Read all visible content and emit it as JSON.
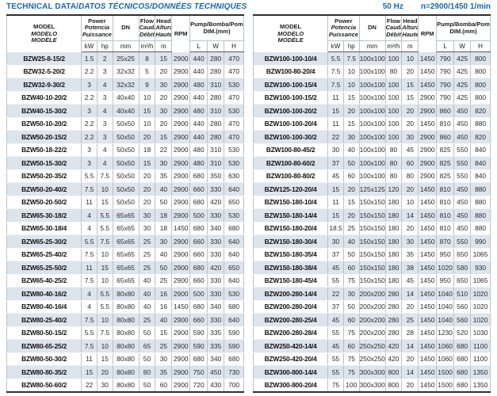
{
  "title": {
    "upright": "TECHNICAL DATA/",
    "italic": "DATOS TÉCNICOS/DONNÉES TECHNIQUES"
  },
  "frequency": {
    "hz": "50 Hz",
    "speed": "n=2900/1450 1/min"
  },
  "colors": {
    "accent_blue": "#1668b0",
    "row_shade": "#dde4ec",
    "grid_line": "#b7c1cb",
    "frame_dark": "#2e2e2e"
  },
  "header": {
    "model": [
      "MODEL",
      "MODELO",
      "MODÈLE"
    ],
    "power": [
      "Power",
      "Potencia",
      "Puissance"
    ],
    "dn": "DN",
    "flow": [
      "Flow",
      "Caudal",
      "Débit"
    ],
    "head": [
      "Head",
      "Altura",
      "Hauteur"
    ],
    "rpm": "RPM",
    "dim": [
      "Pump/Bomba/Pompe",
      "DIM.(mm)"
    ],
    "units": {
      "kw": "kW",
      "hp": "hp",
      "dn": "mm",
      "flow": "m³/h",
      "head": "m",
      "l": "L",
      "w": "W",
      "h": "H"
    }
  },
  "left_table": {
    "rows": [
      [
        "BZW25-8-15/2",
        "1.5",
        "2",
        "25x25",
        "8",
        "15",
        "2900",
        "440",
        "280",
        "470"
      ],
      [
        "BZW32-5-20/2",
        "2.2",
        "3",
        "32x32",
        "5",
        "20",
        "2900",
        "440",
        "280",
        "470"
      ],
      [
        "BZW32-9-30/2",
        "3",
        "4",
        "32x32",
        "9",
        "30",
        "2900",
        "480",
        "310",
        "530"
      ],
      [
        "BZW40-10-20/2",
        "2.2",
        "3",
        "40x40",
        "10",
        "20",
        "2900",
        "440",
        "280",
        "470"
      ],
      [
        "BZW40-15-30/2",
        "3",
        "4",
        "40x40",
        "15",
        "30",
        "2900",
        "480",
        "310",
        "530"
      ],
      [
        "BZW50-10-20/2",
        "2.2",
        "3",
        "50x50",
        "10",
        "20",
        "2900",
        "440",
        "280",
        "470"
      ],
      [
        "BZW50-20-15/2",
        "2.2",
        "3",
        "50x50",
        "20",
        "15",
        "2900",
        "440",
        "280",
        "470"
      ],
      [
        "BZW50-18-22/2",
        "3",
        "4",
        "50x50",
        "18",
        "22",
        "2900",
        "480",
        "310",
        "530"
      ],
      [
        "BZW50-15-30/2",
        "3",
        "4",
        "50x50",
        "15",
        "30",
        "2900",
        "480",
        "310",
        "530"
      ],
      [
        "BZW50-20-35/2",
        "5.5",
        "7.5",
        "50x50",
        "20",
        "35",
        "2900",
        "680",
        "350",
        "630"
      ],
      [
        "BZW50-20-40/2",
        "7.5",
        "10",
        "50x50",
        "20",
        "40",
        "2900",
        "660",
        "330",
        "640"
      ],
      [
        "BZW50-20-50/2",
        "11",
        "15",
        "50x50",
        "20",
        "50",
        "2900",
        "680",
        "420",
        "650"
      ],
      [
        "BZW65-30-18/2",
        "4",
        "5.5",
        "65x65",
        "30",
        "18",
        "2900",
        "500",
        "330",
        "530"
      ],
      [
        "BZW65-30-18/4",
        "4",
        "5.5",
        "65x65",
        "30",
        "18",
        "1450",
        "680",
        "340",
        "680"
      ],
      [
        "BZW65-25-30/2",
        "5.5",
        "7.5",
        "65x65",
        "25",
        "30",
        "2900",
        "660",
        "330",
        "640"
      ],
      [
        "BZW65-25-40/2",
        "7.5",
        "10",
        "65x65",
        "25",
        "40",
        "2900",
        "660",
        "330",
        "640"
      ],
      [
        "BZW65-25-50/2",
        "11",
        "15",
        "65x65",
        "25",
        "50",
        "2900",
        "680",
        "420",
        "650"
      ],
      [
        "BZW65-40-25/2",
        "7.5",
        "10",
        "65x65",
        "40",
        "25",
        "2900",
        "660",
        "330",
        "640"
      ],
      [
        "BZW80-40-16/2",
        "4",
        "5.5",
        "80x80",
        "40",
        "16",
        "2900",
        "500",
        "330",
        "530"
      ],
      [
        "BZW80-40-16/4",
        "4",
        "5.5",
        "80x80",
        "40",
        "16",
        "1450",
        "680",
        "340",
        "680"
      ],
      [
        "BZW80-25-40/2",
        "7.5",
        "10",
        "80x80",
        "25",
        "40",
        "2900",
        "660",
        "330",
        "640"
      ],
      [
        "BZW80-50-15/2",
        "5.5",
        "7.5",
        "80x80",
        "50",
        "15",
        "2900",
        "590",
        "335",
        "590"
      ],
      [
        "BZW80-65-25/2",
        "7.5",
        "10",
        "80x80",
        "65",
        "25",
        "2900",
        "590",
        "335",
        "590"
      ],
      [
        "BZW80-50-30/2",
        "11",
        "15",
        "80x80",
        "50",
        "30",
        "2900",
        "680",
        "340",
        "680"
      ],
      [
        "BZW80-80-35/2",
        "15",
        "20",
        "80x80",
        "80",
        "35",
        "2900",
        "750",
        "450",
        "730"
      ],
      [
        "BZW80-50-60/2",
        "22",
        "30",
        "80x80",
        "50",
        "60",
        "2900",
        "720",
        "430",
        "700"
      ]
    ]
  },
  "right_table": {
    "rows": [
      [
        "BZW100-100-10/4",
        "5.5",
        "7.5",
        "100x100",
        "100",
        "10",
        "1450",
        "790",
        "425",
        "800"
      ],
      [
        "BZW100-80-20/4",
        "7.5",
        "10",
        "100x100",
        "80",
        "20",
        "1450",
        "790",
        "425",
        "800"
      ],
      [
        "BZW100-100-15/4",
        "7.5",
        "10",
        "100x100",
        "100",
        "15",
        "1450",
        "790",
        "425",
        "800"
      ],
      [
        "BZW100-100-15/2",
        "11",
        "15",
        "100x100",
        "100",
        "15",
        "2900",
        "790",
        "425",
        "800"
      ],
      [
        "BZW100-100-20/2",
        "15",
        "20",
        "100x100",
        "100",
        "20",
        "2900",
        "860",
        "450",
        "820"
      ],
      [
        "BZW100-100-20/4",
        "11",
        "15",
        "100x100",
        "100",
        "20",
        "1450",
        "810",
        "450",
        "880"
      ],
      [
        "BZW100-100-30/2",
        "22",
        "30",
        "100x100",
        "100",
        "30",
        "2900",
        "860",
        "450",
        "820"
      ],
      [
        "BZW100-80-45/2",
        "30",
        "40",
        "100x100",
        "80",
        "45",
        "2900",
        "825",
        "550",
        "840"
      ],
      [
        "BZW100-80-60/2",
        "37",
        "50",
        "100x100",
        "80",
        "60",
        "2900",
        "825",
        "550",
        "840"
      ],
      [
        "BZW100-80-80/2",
        "45",
        "60",
        "100x100",
        "80",
        "80",
        "2900",
        "825",
        "550",
        "840"
      ],
      [
        "BZW125-120-20/4",
        "15",
        "20",
        "125x125",
        "120",
        "20",
        "1450",
        "810",
        "450",
        "880"
      ],
      [
        "BZW150-180-10/4",
        "11",
        "15",
        "150x150",
        "180",
        "10",
        "1450",
        "810",
        "450",
        "880"
      ],
      [
        "BZW150-180-14/4",
        "15",
        "20",
        "150x150",
        "180",
        "14",
        "1450",
        "810",
        "450",
        "880"
      ],
      [
        "BZW150-180-20/4",
        "18.5",
        "25",
        "150x150",
        "180",
        "20",
        "1450",
        "810",
        "450",
        "880"
      ],
      [
        "BZW150-180-30/4",
        "30",
        "40",
        "150x150",
        "180",
        "30",
        "1450",
        "870",
        "550",
        "990"
      ],
      [
        "BZW150-180-35/4",
        "37",
        "50",
        "150x150",
        "180",
        "35",
        "1450",
        "950",
        "650",
        "1065"
      ],
      [
        "BZW150-180-38/4",
        "45",
        "60",
        "150x150",
        "180",
        "38",
        "1450",
        "1020",
        "580",
        "930"
      ],
      [
        "BZW150-180-45/4",
        "55",
        "75",
        "150x150",
        "180",
        "45",
        "1450",
        "950",
        "650",
        "1065"
      ],
      [
        "BZW200-280-14/4",
        "22",
        "30",
        "200x200",
        "280",
        "14",
        "1450",
        "1040",
        "510",
        "1020"
      ],
      [
        "BZW200-280-20/4",
        "37",
        "50",
        "200x200",
        "280",
        "20",
        "1450",
        "1040",
        "560",
        "1020"
      ],
      [
        "BZW200-280-25/4",
        "45",
        "60",
        "200x200",
        "280",
        "25",
        "1450",
        "1040",
        "560",
        "1020"
      ],
      [
        "BZW200-280-28/4",
        "55",
        "75",
        "200x200",
        "280",
        "28",
        "1450",
        "1230",
        "520",
        "1030"
      ],
      [
        "BZW250-420-14/4",
        "45",
        "60",
        "250x250",
        "420",
        "14",
        "1450",
        "1060",
        "680",
        "1100"
      ],
      [
        "BZW250-420-20/4",
        "55",
        "75",
        "250x250",
        "420",
        "20",
        "1450",
        "1060",
        "680",
        "1100"
      ],
      [
        "BZW300-800-14/4",
        "55",
        "75",
        "300x300",
        "800",
        "14",
        "1450",
        "1500",
        "680",
        "1350"
      ],
      [
        "BZW300-800-20/4",
        "75",
        "100",
        "300x300",
        "800",
        "20",
        "1450",
        "1500",
        "680",
        "1350"
      ]
    ]
  }
}
